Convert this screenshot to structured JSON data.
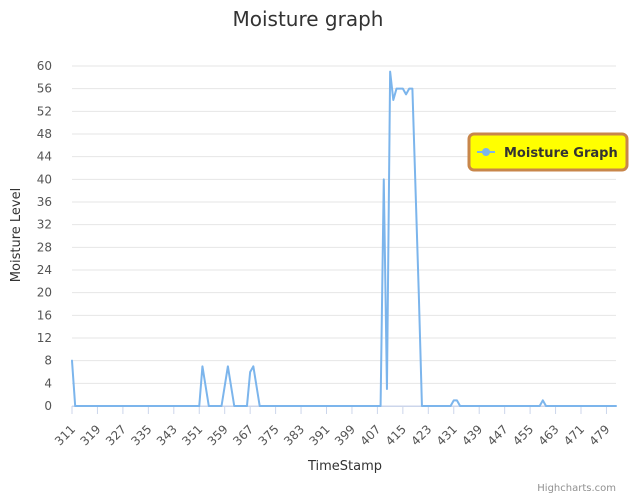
{
  "chart_data": {
    "type": "line",
    "title": "Moisture graph",
    "xlabel": "TimeStamp",
    "ylabel": "Moisture Level",
    "ylim": [
      0,
      60
    ],
    "yticks": [
      0,
      4,
      8,
      12,
      16,
      20,
      24,
      28,
      32,
      36,
      40,
      44,
      48,
      52,
      56,
      60
    ],
    "xlim": [
      311,
      482
    ],
    "xticks": [
      311,
      319,
      327,
      335,
      343,
      351,
      359,
      367,
      375,
      383,
      391,
      399,
      407,
      415,
      423,
      431,
      439,
      447,
      455,
      463,
      471,
      479
    ],
    "grid": true,
    "legend_position": "right",
    "series": [
      {
        "name": "Moisture Graph",
        "color": "#7cb5ec",
        "points": [
          [
            311,
            8
          ],
          [
            312,
            0
          ],
          [
            351,
            0
          ],
          [
            352,
            7
          ],
          [
            354,
            0
          ],
          [
            358,
            0
          ],
          [
            360,
            7
          ],
          [
            362,
            0
          ],
          [
            366,
            0
          ],
          [
            367,
            6
          ],
          [
            368,
            7
          ],
          [
            370,
            0
          ],
          [
            408,
            0
          ],
          [
            409,
            40
          ],
          [
            410,
            3
          ],
          [
            411,
            59
          ],
          [
            412,
            54
          ],
          [
            413,
            56
          ],
          [
            415,
            56
          ],
          [
            416,
            55
          ],
          [
            417,
            56
          ],
          [
            418,
            56
          ],
          [
            420,
            20
          ],
          [
            421,
            0
          ],
          [
            430,
            0
          ],
          [
            431,
            1
          ],
          [
            432,
            1
          ],
          [
            433,
            0
          ],
          [
            458,
            0
          ],
          [
            459,
            1
          ],
          [
            460,
            0
          ],
          [
            482,
            0
          ]
        ]
      }
    ]
  },
  "credits": "Highcharts.com"
}
